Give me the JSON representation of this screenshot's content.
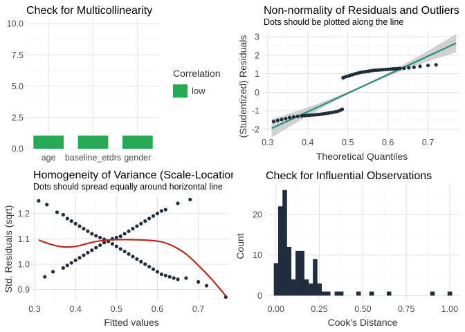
{
  "chart_data": [
    {
      "type": "bar",
      "title": "Check for Multicollinearity",
      "categories": [
        "age",
        "baseline_etdrs",
        "gender"
      ],
      "values": [
        1.05,
        1.05,
        1.05
      ],
      "ylim": [
        0,
        10.4
      ],
      "yticks": [
        0.0,
        2.5,
        5.0,
        7.5,
        10.0
      ],
      "ytick_labels": [
        "0.0",
        "2.5",
        "5.0",
        "7.5",
        "10.0"
      ],
      "bar_color": "#27a852",
      "legend": {
        "title": "Correlation",
        "entries": [
          {
            "label": "low",
            "color": "#27a852"
          }
        ]
      }
    },
    {
      "type": "scatter",
      "title": "Non-normality of Residuals and Outliers",
      "subtitle": "Dots should be plotted along the line",
      "xlabel": "Theoretical Quantiles",
      "ylabel": "(Studentized) Residuals",
      "xlim": [
        0.29,
        0.78
      ],
      "ylim": [
        -2.3,
        3.3
      ],
      "xticks": [
        0.3,
        0.4,
        0.5,
        0.6,
        0.7
      ],
      "yticks": [
        -2,
        -1,
        0,
        1,
        2,
        3
      ],
      "point_color": "#1f2d3d",
      "line_color": "#2a8f71",
      "band_color": "#bdbdbd",
      "reference_line": {
        "x": [
          0.31,
          0.77
        ],
        "y": [
          -1.95,
          2.65
        ]
      },
      "series": [
        {
          "x": [
            0.315,
            0.325,
            0.335,
            0.345,
            0.355,
            0.365,
            0.375,
            0.385,
            0.392,
            0.398,
            0.404,
            0.41,
            0.416,
            0.422,
            0.428,
            0.434,
            0.44,
            0.446,
            0.452,
            0.458,
            0.464,
            0.47,
            0.476,
            0.482,
            0.486,
            0.488,
            0.492,
            0.498,
            0.504,
            0.51,
            0.516,
            0.522,
            0.528,
            0.534,
            0.54,
            0.546,
            0.552,
            0.558,
            0.564,
            0.57,
            0.576,
            0.582,
            0.588,
            0.594,
            0.6,
            0.606,
            0.612,
            0.618,
            0.624,
            0.63,
            0.64,
            0.652,
            0.665,
            0.68,
            0.7,
            0.72
          ],
          "y": [
            -1.58,
            -1.52,
            -1.47,
            -1.42,
            -1.37,
            -1.33,
            -1.3,
            -1.28,
            -1.26,
            -1.25,
            -1.24,
            -1.23,
            -1.22,
            -1.21,
            -1.2,
            -1.18,
            -1.16,
            -1.14,
            -1.12,
            -1.1,
            -1.08,
            -1.05,
            -1.02,
            -0.96,
            -0.92,
            0.78,
            0.82,
            0.86,
            0.9,
            0.94,
            0.98,
            1.02,
            1.05,
            1.08,
            1.1,
            1.12,
            1.14,
            1.16,
            1.18,
            1.19,
            1.2,
            1.21,
            1.22,
            1.23,
            1.24,
            1.25,
            1.26,
            1.27,
            1.28,
            1.29,
            1.3,
            1.32,
            1.35,
            1.4,
            1.45,
            1.48
          ]
        }
      ]
    },
    {
      "type": "scatter",
      "title": "Homogeneity of Variance (Scale-Location)",
      "subtitle": "Dots should spread equally around horizontal line",
      "xlabel": "Fitted values",
      "ylabel": "Std. Residuals (sqrt)",
      "xlim": [
        0.295,
        0.775
      ],
      "ylim": [
        0.855,
        1.27
      ],
      "xticks": [
        0.3,
        0.4,
        0.5,
        0.6,
        0.7
      ],
      "yticks": [
        0.9,
        1.0,
        1.1,
        1.2
      ],
      "ytick_labels": [
        "0.9",
        "1.0",
        "1.1",
        "1.2"
      ],
      "point_color": "#1f2d3d",
      "line_color": "#b22c24",
      "series": [
        {
          "x": [
            0.31,
            0.33,
            0.355,
            0.37,
            0.38,
            0.39,
            0.4,
            0.41,
            0.42,
            0.43,
            0.44,
            0.45,
            0.46,
            0.47,
            0.48,
            0.49,
            0.5,
            0.51,
            0.52,
            0.53,
            0.54,
            0.55,
            0.56,
            0.57,
            0.58,
            0.59,
            0.6,
            0.61,
            0.62,
            0.63,
            0.64,
            0.65,
            0.67,
            0.7,
            0.72,
            0.767
          ],
          "y": [
            1.25,
            1.235,
            1.205,
            1.195,
            1.18,
            1.17,
            1.16,
            1.15,
            1.14,
            1.13,
            1.12,
            1.112,
            1.105,
            1.098,
            1.09,
            1.08,
            1.07,
            1.06,
            1.05,
            1.04,
            1.03,
            1.02,
            1.01,
            1.0,
            0.99,
            0.98,
            0.97,
            0.96,
            0.955,
            0.95,
            0.945,
            0.94,
            0.945,
            0.93,
            0.915,
            0.87
          ]
        },
        {
          "x": [
            0.325,
            0.345,
            0.37,
            0.38,
            0.39,
            0.4,
            0.41,
            0.42,
            0.43,
            0.44,
            0.45,
            0.46,
            0.47,
            0.48,
            0.49,
            0.5,
            0.51,
            0.52,
            0.53,
            0.54,
            0.55,
            0.56,
            0.57,
            0.58,
            0.59,
            0.6,
            0.61,
            0.62,
            0.65,
            0.68
          ],
          "y": [
            0.95,
            0.97,
            0.985,
            0.995,
            1.005,
            1.015,
            1.025,
            1.035,
            1.045,
            1.055,
            1.065,
            1.075,
            1.085,
            1.09,
            1.1,
            1.105,
            1.11,
            1.12,
            1.13,
            1.14,
            1.15,
            1.16,
            1.17,
            1.18,
            1.19,
            1.2,
            1.21,
            1.215,
            1.24,
            1.255
          ]
        }
      ],
      "smooth_line": {
        "x": [
          0.31,
          0.34,
          0.37,
          0.4,
          0.43,
          0.46,
          0.49,
          0.52,
          0.55,
          0.58,
          0.61,
          0.64,
          0.67,
          0.7,
          0.73,
          0.767
        ],
        "y": [
          1.095,
          1.078,
          1.068,
          1.07,
          1.082,
          1.092,
          1.096,
          1.097,
          1.096,
          1.094,
          1.088,
          1.07,
          1.04,
          0.995,
          0.945,
          0.875
        ]
      }
    },
    {
      "type": "bar",
      "title": "Check for Influential Observations",
      "xlabel": "Cook's Distance",
      "ylabel": "Count",
      "xlim": [
        -0.055,
        1.06
      ],
      "ylim": [
        -1.3,
        27.5
      ],
      "xticks": [
        0.0,
        0.25,
        0.5,
        0.75,
        1.0
      ],
      "xtick_labels": [
        "0.00",
        "0.25",
        "0.50",
        "0.75",
        "1.00"
      ],
      "yticks": [
        0,
        10,
        20
      ],
      "bar_color": "#1f2d3d",
      "bin_width": 0.025,
      "bin_starts": [
        -0.0125,
        0.0125,
        0.0375,
        0.0625,
        0.0875,
        0.1125,
        0.1375,
        0.1625,
        0.1875,
        0.2125,
        0.2375,
        0.2625,
        0.2875,
        0.3125,
        0.3375,
        0.3625,
        0.3875,
        0.4125,
        0.4375,
        0.4625,
        0.4875,
        0.5125,
        0.5375,
        0.5625,
        0.5875,
        0.6125,
        0.6375,
        0.6625,
        0.6875,
        0.7125,
        0.7375,
        0.7625,
        0.7875,
        0.8125,
        0.8375,
        0.8625,
        0.8875,
        0.9125,
        0.9375,
        0.9625,
        0.9875
      ],
      "counts": [
        8,
        22,
        26,
        12,
        4,
        11,
        11,
        4,
        3,
        9,
        3,
        1,
        1,
        0,
        1,
        1,
        0,
        0,
        0,
        1,
        0,
        0,
        1,
        0,
        0,
        0,
        1,
        0,
        0,
        0,
        0,
        0,
        0,
        0,
        0,
        0,
        1,
        0,
        0,
        0,
        1
      ]
    }
  ]
}
